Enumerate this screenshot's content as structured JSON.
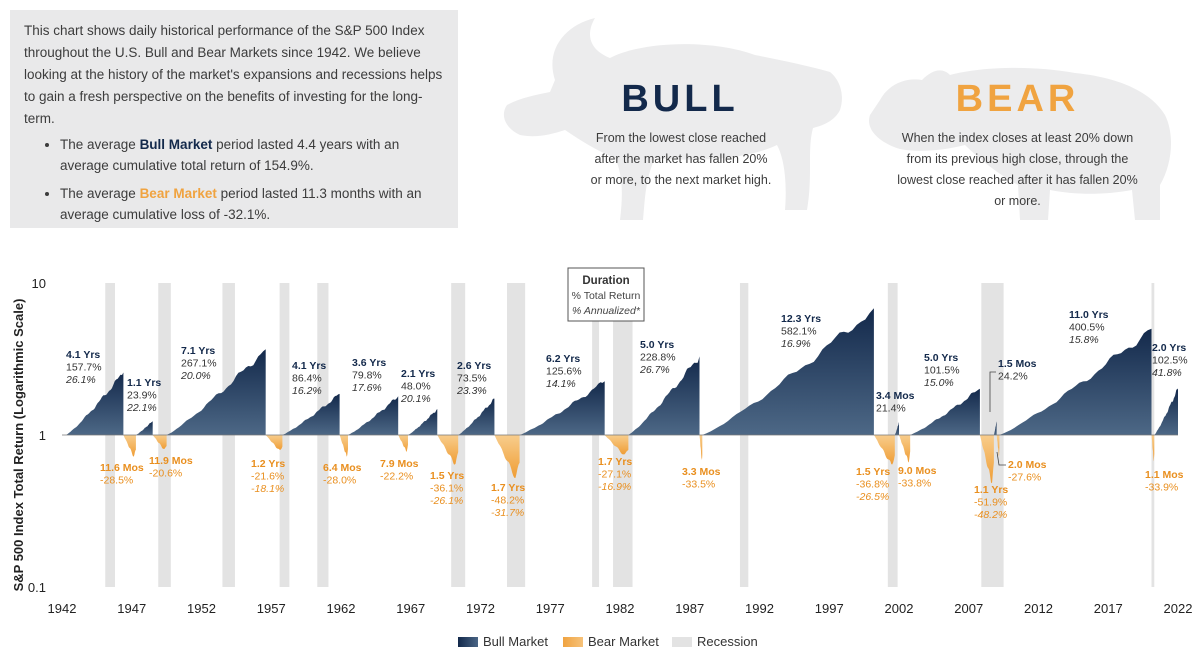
{
  "intro": {
    "paragraph": "This chart shows daily historical performance of the S&P 500 Index throughout the U.S. Bull and Bear Markets since 1942. We believe looking at the history of the market's expansions and recessions helps to gain a fresh perspective on the benefits of investing for the long-term.",
    "bullet1_pre": "The average ",
    "bullet1_kw": "Bull Market",
    "bullet1_post": " period lasted 4.4 years with an average cumulative total return of 154.9%.",
    "bullet2_pre": "The average ",
    "bullet2_kw": "Bear Market",
    "bullet2_post": " period lasted 11.3 months with an average cumulative loss of -32.1%."
  },
  "bull": {
    "title": "BULL",
    "description": "From the lowest close reached after the market has fallen 20% or more, to the next market high."
  },
  "bear": {
    "title": "BEAR",
    "description": "When the index closes at least 20% down from its previous high close, through the lowest close reached after it has fallen 20% or more."
  },
  "colors": {
    "bull": "#1b3a5c",
    "bear": "#f0a340",
    "recession": "#e3e3e3",
    "bull_text": "#13294b"
  },
  "chart_data": {
    "type": "area",
    "title": "",
    "ylabel": "S&P 500 Index Total Return (Logarithmic Scale)",
    "xlabel": "",
    "y_scale": "log",
    "ylim": [
      0.1,
      10
    ],
    "y_ticks": [
      "10",
      "1",
      "0.1"
    ],
    "xlim": [
      1942,
      2022
    ],
    "x_ticks": [
      "1942",
      "1947",
      "1952",
      "1957",
      "1962",
      "1967",
      "1972",
      "1977",
      "1982",
      "1987",
      "1992",
      "1997",
      "2002",
      "2007",
      "2012",
      "2017",
      "2022"
    ],
    "key": {
      "title": "Duration",
      "line1": "% Total Return",
      "line2": "% Annualized*"
    },
    "legend": [
      "Bull Market",
      "Bear Market",
      "Recession"
    ],
    "recessions": [
      [
        1945.1,
        1945.8
      ],
      [
        1948.9,
        1949.8
      ],
      [
        1953.5,
        1954.4
      ],
      [
        1957.6,
        1958.3
      ],
      [
        1960.3,
        1961.1
      ],
      [
        1969.9,
        1970.9
      ],
      [
        1973.9,
        1975.2
      ],
      [
        1980.0,
        1980.5
      ],
      [
        1981.5,
        1982.9
      ],
      [
        1990.6,
        1991.2
      ],
      [
        2001.2,
        2001.9
      ],
      [
        2007.9,
        2009.5
      ],
      [
        2020.1,
        2020.3
      ]
    ],
    "bull_markets": [
      {
        "start": 1942.3,
        "end": 1946.4,
        "peak": 2.577,
        "duration": "4.1 Yrs",
        "total": "157.7%",
        "annual": "26.1%"
      },
      {
        "start": 1947.3,
        "end": 1948.5,
        "peak": 1.239,
        "duration": "1.1 Yrs",
        "total": "23.9%",
        "annual": "22.1%"
      },
      {
        "start": 1949.5,
        "end": 1956.6,
        "peak": 3.671,
        "duration": "7.1 Yrs",
        "total": "267.1%",
        "annual": "20.0%"
      },
      {
        "start": 1957.8,
        "end": 1961.9,
        "peak": 1.864,
        "duration": "4.1 Yrs",
        "total": "86.4%",
        "annual": "16.2%"
      },
      {
        "start": 1962.5,
        "end": 1966.1,
        "peak": 1.798,
        "duration": "3.6 Yrs",
        "total": "79.8%",
        "annual": "17.6%"
      },
      {
        "start": 1966.8,
        "end": 1968.9,
        "peak": 1.48,
        "duration": "2.1 Yrs",
        "total": "48.0%",
        "annual": "20.1%"
      },
      {
        "start": 1970.4,
        "end": 1973.0,
        "peak": 1.735,
        "duration": "2.6 Yrs",
        "total": "73.5%",
        "annual": "23.3%"
      },
      {
        "start": 1974.8,
        "end": 1980.9,
        "peak": 2.256,
        "duration": "6.2 Yrs",
        "total": "125.6%",
        "annual": "14.1%"
      },
      {
        "start": 1982.6,
        "end": 1987.7,
        "peak": 3.288,
        "duration": "5.0 Yrs",
        "total": "228.8%",
        "annual": "26.7%"
      },
      {
        "start": 1987.9,
        "end": 2000.2,
        "peak": 6.821,
        "duration": "12.3 Yrs",
        "total": "582.1%",
        "annual": "16.9%"
      },
      {
        "start": 2001.7,
        "end": 2002.0,
        "peak": 1.214,
        "duration": "3.4 Mos",
        "total": "21.4%",
        "annual": ""
      },
      {
        "start": 2002.8,
        "end": 2007.8,
        "peak": 2.015,
        "duration": "5.0 Yrs",
        "total": "101.5%",
        "annual": "15.0%"
      },
      {
        "start": 2008.8,
        "end": 2009.0,
        "peak": 1.242,
        "duration": "1.5 Mos",
        "total": "24.2%",
        "annual": ""
      },
      {
        "start": 2009.2,
        "end": 2020.1,
        "peak": 5.005,
        "duration": "11.0 Yrs",
        "total": "400.5%",
        "annual": "15.8%"
      },
      {
        "start": 2020.3,
        "end": 2022.0,
        "peak": 2.025,
        "duration": "2.0 Yrs",
        "total": "102.5%",
        "annual": "41.8%"
      }
    ],
    "bear_markets": [
      {
        "start": 1946.4,
        "end": 1947.3,
        "trough": 0.715,
        "duration": "11.6 Mos",
        "total": "-28.5%",
        "annual": ""
      },
      {
        "start": 1948.5,
        "end": 1949.5,
        "trough": 0.794,
        "duration": "11.9 Mos",
        "total": "-20.6%",
        "annual": ""
      },
      {
        "start": 1956.6,
        "end": 1957.8,
        "trough": 0.784,
        "duration": "1.2 Yrs",
        "total": "-21.6%",
        "annual": "-18.1%"
      },
      {
        "start": 1961.9,
        "end": 1962.5,
        "trough": 0.72,
        "duration": "6.4 Mos",
        "total": "-28.0%",
        "annual": ""
      },
      {
        "start": 1966.1,
        "end": 1966.8,
        "trough": 0.778,
        "duration": "7.9 Mos",
        "total": "-22.2%",
        "annual": ""
      },
      {
        "start": 1968.9,
        "end": 1970.4,
        "trough": 0.639,
        "duration": "1.5 Yrs",
        "total": "-36.1%",
        "annual": "-26.1%"
      },
      {
        "start": 1973.0,
        "end": 1974.8,
        "trough": 0.518,
        "duration": "1.7 Yrs",
        "total": "-48.2%",
        "annual": "-31.7%"
      },
      {
        "start": 1980.9,
        "end": 1982.6,
        "trough": 0.729,
        "duration": "1.7 Yrs",
        "total": "-27.1%",
        "annual": "-16.9%"
      },
      {
        "start": 1987.7,
        "end": 1987.9,
        "trough": 0.665,
        "duration": "3.3 Mos",
        "total": "-33.5%",
        "annual": ""
      },
      {
        "start": 2000.2,
        "end": 2001.7,
        "trough": 0.632,
        "duration": "1.5 Yrs",
        "total": "-36.8%",
        "annual": "-26.5%"
      },
      {
        "start": 2002.0,
        "end": 2002.8,
        "trough": 0.662,
        "duration": "9.0 Mos",
        "total": "-33.8%",
        "annual": ""
      },
      {
        "start": 2007.8,
        "end": 2008.8,
        "trough": 0.481,
        "duration": "1.1 Yrs",
        "total": "-51.9%",
        "annual": "-48.2%"
      },
      {
        "start": 2009.0,
        "end": 2009.2,
        "trough": 0.724,
        "duration": "2.0 Mos",
        "total": "-27.6%",
        "annual": ""
      },
      {
        "start": 2020.1,
        "end": 2020.3,
        "trough": 0.661,
        "duration": "1.1 Mos",
        "total": "-33.9%",
        "annual": ""
      }
    ]
  }
}
